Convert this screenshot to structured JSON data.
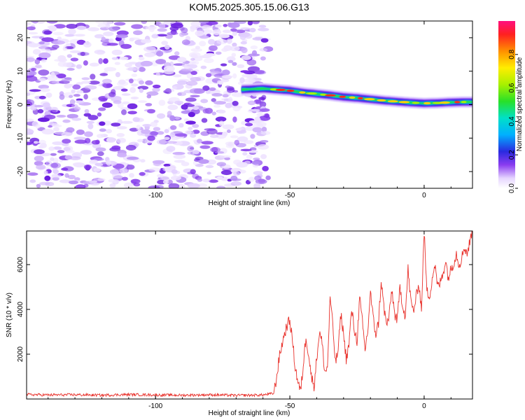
{
  "title": "KOM5.2025.305.15.06.G13",
  "chart_data": [
    {
      "type": "heatmap",
      "title": "KOM5.2025.305.15.06.G13",
      "xlabel": "Height of straight line (km)",
      "ylabel": "Frequency (Hz)",
      "xlim": [
        -148,
        18
      ],
      "ylim": [
        -25,
        25
      ],
      "x_ticks": [
        -100,
        -50,
        0
      ],
      "x_tick_labels": [
        "-100",
        "-50",
        "0"
      ],
      "y_ticks": [
        -20,
        -10,
        0,
        10,
        20
      ],
      "y_tick_labels": [
        "-20",
        "-10",
        "0",
        "10",
        "20"
      ],
      "noise_region_x": [
        -148,
        -58
      ],
      "signal_track": {
        "x": [
          -68,
          -60,
          -55,
          -50,
          -45,
          -40,
          -35,
          -30,
          -25,
          -20,
          -15,
          -10,
          -5,
          0,
          5,
          10,
          15,
          18
        ],
        "y": [
          4.5,
          4.8,
          4.5,
          4.2,
          3.6,
          3.2,
          2.8,
          2.3,
          2.0,
          1.6,
          1.2,
          0.9,
          0.6,
          0.4,
          0.5,
          0.7,
          0.8,
          0.8
        ]
      },
      "colorbar": {
        "label": "Normalized spectral amplitude",
        "range": [
          0.0,
          1.0
        ],
        "ticks": [
          0.0,
          0.2,
          0.4,
          0.6,
          0.8
        ],
        "tick_labels": [
          "0.0",
          "0.2",
          "0.4",
          "0.6",
          "0.8"
        ]
      }
    },
    {
      "type": "line",
      "xlabel": "Height of straight line (km)",
      "ylabel": "SNR (10 * v/v)",
      "xlim": [
        -148,
        18
      ],
      "ylim": [
        0,
        7500
      ],
      "x_ticks": [
        -100,
        -50,
        0
      ],
      "x_tick_labels": [
        "-100",
        "-50",
        "0"
      ],
      "y_ticks": [
        2000,
        4000,
        6000
      ],
      "y_tick_labels": [
        "2000",
        "4000",
        "6000"
      ],
      "series": [
        {
          "name": "SNR",
          "color": "#e8302a",
          "x": [
            -148,
            -140,
            -130,
            -120,
            -110,
            -100,
            -90,
            -80,
            -70,
            -60,
            -56,
            -55,
            -54,
            -53,
            -52,
            -51,
            -50,
            -49,
            -48,
            -47,
            -46,
            -45,
            -44,
            -43,
            -42,
            -41,
            -40,
            -39,
            -38,
            -37,
            -36,
            -35,
            -34,
            -33,
            -32,
            -31,
            -30,
            -29,
            -28,
            -27,
            -26,
            -25,
            -24,
            -23,
            -22,
            -21,
            -20,
            -19,
            -18,
            -17,
            -16,
            -15,
            -14,
            -13,
            -12,
            -11,
            -10,
            -9,
            -8,
            -7,
            -6,
            -5,
            -4,
            -3,
            -2,
            -1,
            0,
            1,
            2,
            3,
            4,
            5,
            6,
            7,
            8,
            9,
            10,
            11,
            12,
            13,
            14,
            15,
            16,
            17,
            18
          ],
          "y": [
            200,
            180,
            190,
            170,
            200,
            180,
            170,
            190,
            160,
            180,
            250,
            900,
            1800,
            2400,
            2900,
            3300,
            3500,
            2600,
            1400,
            800,
            300,
            1500,
            2800,
            2000,
            1000,
            600,
            1800,
            3000,
            2500,
            1200,
            1400,
            4600,
            3200,
            1600,
            2200,
            3800,
            2900,
            1800,
            2400,
            4000,
            3100,
            2600,
            4500,
            3400,
            2200,
            3000,
            4800,
            3600,
            2900,
            3400,
            5300,
            4100,
            3300,
            3700,
            4900,
            3800,
            3500,
            5000,
            4200,
            3700,
            5800,
            4400,
            3900,
            4500,
            5200,
            4000,
            7500,
            4800,
            4600,
            5400,
            6000,
            5000,
            5200,
            5600,
            6200,
            5400,
            5800,
            6100,
            6500,
            6000,
            6300,
            6800,
            6500,
            7000,
            7500
          ]
        }
      ]
    }
  ]
}
